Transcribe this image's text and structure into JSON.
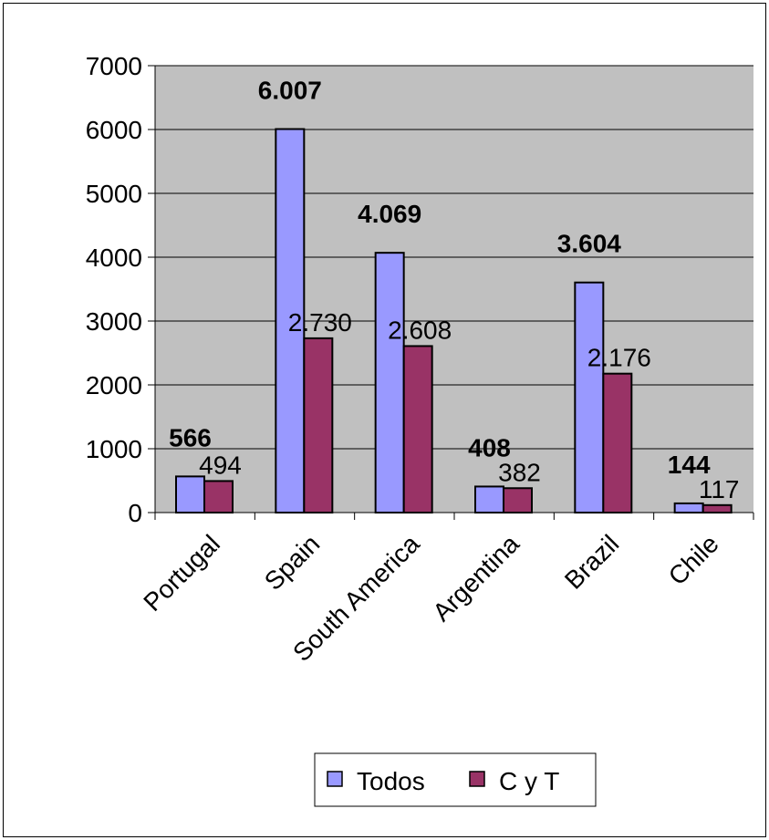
{
  "chart_data": {
    "type": "bar",
    "title": "",
    "xlabel": "",
    "ylabel": "",
    "categories": [
      "Portugal",
      "Spain",
      "South America",
      "Argentina",
      "Brazil",
      "Chile"
    ],
    "series": [
      {
        "name": "Todos",
        "values": [
          566,
          6007,
          4069,
          408,
          3604,
          144
        ],
        "data_labels": [
          "566",
          "6.007",
          "4.069",
          "408",
          "3.604",
          "144"
        ],
        "label_weight": "bold",
        "color": "#9999FF"
      },
      {
        "name": "C y T",
        "values": [
          494,
          2730,
          2608,
          382,
          2176,
          117
        ],
        "data_labels": [
          "494",
          "2.730",
          "2.608",
          "382",
          "2.176",
          "117"
        ],
        "label_weight": "normal",
        "color": "#993366"
      }
    ],
    "ylim": [
      0,
      7000
    ],
    "yticks": [
      0,
      1000,
      2000,
      3000,
      4000,
      5000,
      6000,
      7000
    ],
    "grid": true,
    "plot_background": "#C0C0C0",
    "legend_position": "bottom"
  }
}
